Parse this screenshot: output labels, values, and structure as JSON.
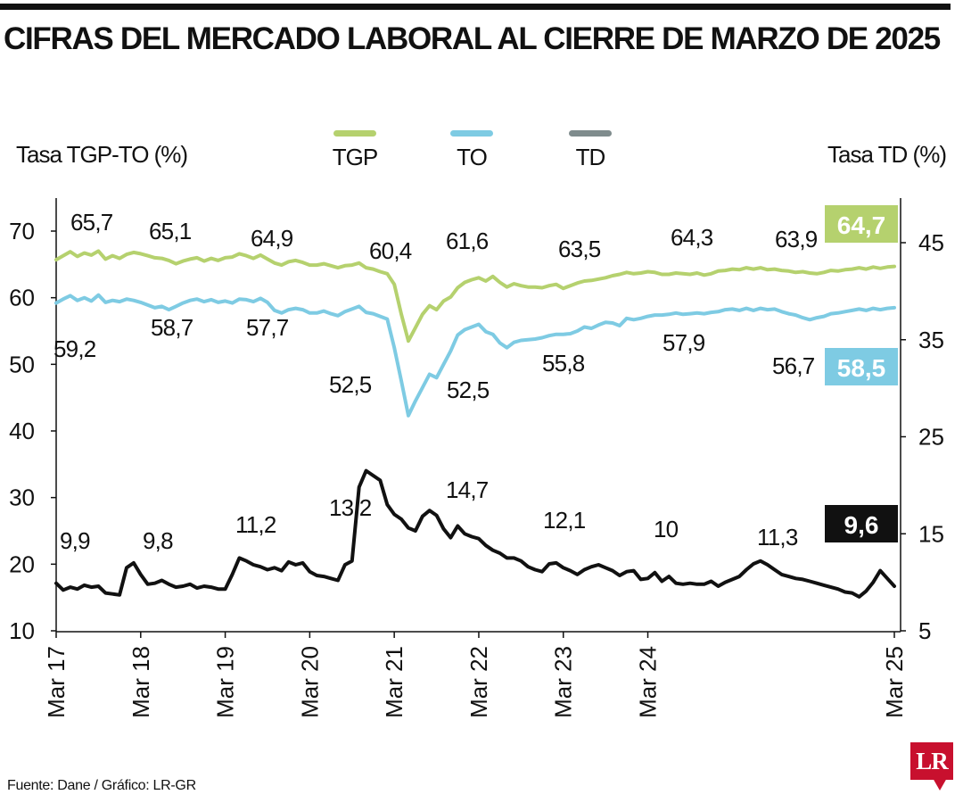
{
  "title": "CIFRAS DEL MERCADO LABORAL AL CIERRE DE MARZO DE 2025",
  "source": "Fuente: Dane / Gráfico: LR-GR",
  "logo": "LR",
  "chart_data": {
    "type": "line",
    "left_axis": {
      "label": "Tasa TGP-TO (%)",
      "ticks": [
        10,
        20,
        30,
        40,
        50,
        60,
        70
      ],
      "range": [
        10,
        70
      ]
    },
    "right_axis": {
      "label": "Tasa TD (%)",
      "ticks": [
        5,
        15,
        25,
        35,
        45
      ],
      "range": [
        5,
        49
      ]
    },
    "x_labels": [
      "Mar 17",
      "Mar 18",
      "Mar 19",
      "Mar 20",
      "Mar 21",
      "Mar 22",
      "Mar 23",
      "Mar 24",
      "Mar 25"
    ],
    "legend": [
      {
        "key": "TGP",
        "label": "TGP",
        "color": "#b5d16e"
      },
      {
        "key": "TO",
        "label": "TO",
        "color": "#7ecbe3"
      },
      {
        "key": "TD",
        "label": "TD",
        "color": "#7f8c8d"
      }
    ],
    "series": [
      {
        "name": "TGP",
        "color": "#b5d16e",
        "axis": "left",
        "values": [
          65.7,
          66.3,
          66.9,
          66.2,
          66.7,
          66.4,
          67,
          65.8,
          66.3,
          65.9,
          66.5,
          66.8,
          66.6,
          66.3,
          66,
          65.9,
          65.6,
          65.1,
          65.5,
          65.8,
          66,
          65.5,
          65.9,
          65.6,
          66,
          66.1,
          66.6,
          66.3,
          65.9,
          66.4,
          65.8,
          65.2,
          64.9,
          65.4,
          65.6,
          65.3,
          64.9,
          64.9,
          65.1,
          64.8,
          64.5,
          64.8,
          64.9,
          65.2,
          64.5,
          64.3,
          63.9,
          63.6,
          62,
          57.5,
          53.5,
          55.5,
          57.5,
          58.8,
          58.2,
          59.5,
          60.1,
          61.5,
          62.3,
          62.7,
          63,
          62.5,
          63.2,
          62.3,
          61.6,
          62.1,
          61.8,
          61.6,
          61.6,
          61.5,
          61.8,
          62,
          61.4,
          61.8,
          62.2,
          62.5,
          62.6,
          62.8,
          63,
          63.3,
          63.5,
          63.8,
          63.6,
          63.7,
          63.9,
          63.8,
          63.5,
          63.5,
          63.7,
          63.6,
          63.5,
          63.7,
          63.4,
          63.6,
          64,
          64.1,
          64.3,
          64.2,
          64.5,
          64.3,
          64.5,
          64.2,
          64.3,
          64.1,
          64,
          63.8,
          63.9,
          63.7,
          63.6,
          63.8,
          64.1,
          64,
          64.2,
          64.3,
          64.5,
          64.3,
          64.6,
          64.4,
          64.6,
          64.7
        ]
      },
      {
        "name": "TO",
        "color": "#7ecbe3",
        "axis": "left",
        "values": [
          59.2,
          59.8,
          60.3,
          59.6,
          60,
          59.5,
          60.4,
          59.3,
          59.6,
          59.4,
          59.8,
          59.6,
          59.3,
          58.9,
          58.5,
          58.7,
          58.2,
          58.7,
          59.2,
          59.6,
          59.8,
          59.4,
          59.7,
          59.3,
          59.5,
          59.2,
          59.8,
          59.7,
          59.4,
          59.9,
          59.3,
          58.1,
          57.7,
          58.2,
          58.4,
          58.2,
          57.7,
          57.7,
          58,
          57.6,
          57.3,
          57.9,
          58.3,
          58.7,
          57.8,
          57.6,
          57.2,
          56.8,
          52.5,
          47.5,
          42.3,
          44.5,
          46.5,
          48.5,
          48,
          50,
          52,
          54.4,
          55.2,
          55.6,
          56,
          54.9,
          54.5,
          53.2,
          52.5,
          53.3,
          53.6,
          53.7,
          53.8,
          54,
          54.3,
          54.5,
          54.5,
          54.6,
          55,
          55.6,
          55.4,
          55.9,
          56.3,
          56.2,
          55.8,
          56.9,
          56.7,
          56.9,
          57.2,
          57.4,
          57.4,
          57.5,
          57.7,
          57.5,
          57.6,
          57.7,
          57.6,
          57.8,
          57.9,
          58.2,
          58.3,
          58.1,
          58.4,
          58.1,
          58.4,
          58.2,
          58.3,
          57.9,
          57.6,
          57.4,
          57,
          56.7,
          57,
          57.2,
          57.6,
          57.7,
          57.9,
          58.1,
          58.3,
          58.1,
          58.4,
          58.2,
          58.4,
          58.5
        ]
      },
      {
        "name": "TD",
        "color": "#111111",
        "axis": "right",
        "values": [
          9.9,
          9.2,
          9.5,
          9.3,
          9.7,
          9.5,
          9.6,
          8.9,
          8.8,
          8.7,
          11.5,
          12,
          10.8,
          9.8,
          9.9,
          10.2,
          9.8,
          9.5,
          9.6,
          9.8,
          9.4,
          9.6,
          9.5,
          9.3,
          9.3,
          10.8,
          12.5,
          12.2,
          11.8,
          11.6,
          11.3,
          11.5,
          11.2,
          12.1,
          11.8,
          12,
          11.1,
          10.7,
          10.6,
          10.4,
          10.2,
          11.8,
          12.2,
          19.8,
          21.5,
          21,
          20.5,
          18,
          17,
          16.5,
          15.6,
          15.3,
          16.8,
          17.4,
          16.9,
          15.5,
          14.6,
          15.8,
          15,
          14.7,
          14.5,
          13.8,
          13.3,
          13,
          12.5,
          12.5,
          12.2,
          11.6,
          11.3,
          11.1,
          11.9,
          12,
          11.5,
          11.2,
          10.8,
          11.3,
          11.6,
          11.8,
          11.5,
          11.2,
          10.7,
          11.1,
          11.2,
          10.3,
          10.4,
          11,
          10.1,
          10.6,
          9.9,
          9.8,
          9.9,
          9.8,
          9.8,
          10.1,
          9.6,
          10,
          10.3,
          10.6,
          11.3,
          11.9,
          12.2,
          11.8,
          11.3,
          10.8,
          10.6,
          10.4,
          10.3,
          10.1,
          9.9,
          9.7,
          9.5,
          9.3,
          9,
          8.9,
          8.5,
          9.1,
          10,
          11.2,
          10.4,
          9.6
        ]
      }
    ],
    "peak_annotations": [
      {
        "series": "TGP",
        "text": "65,7"
      },
      {
        "series": "TGP",
        "text": "65,1"
      },
      {
        "series": "TGP",
        "text": "64,9"
      },
      {
        "series": "TGP",
        "text": "60,4"
      },
      {
        "series": "TGP",
        "text": "61,6"
      },
      {
        "series": "TGP",
        "text": "63,5"
      },
      {
        "series": "TGP",
        "text": "64,3"
      },
      {
        "series": "TGP",
        "text": "63,9"
      },
      {
        "series": "TO",
        "text": "59,2"
      },
      {
        "series": "TO",
        "text": "58,7"
      },
      {
        "series": "TO",
        "text": "57,7"
      },
      {
        "series": "TO",
        "text": "52,5"
      },
      {
        "series": "TO",
        "text": "52,5"
      },
      {
        "series": "TO",
        "text": "55,8"
      },
      {
        "series": "TO",
        "text": "57,9"
      },
      {
        "series": "TO",
        "text": "56,7"
      },
      {
        "series": "TD",
        "text": "9,9"
      },
      {
        "series": "TD",
        "text": "9,8"
      },
      {
        "series": "TD",
        "text": "11,2"
      },
      {
        "series": "TD",
        "text": "13,2"
      },
      {
        "series": "TD",
        "text": "14,7"
      },
      {
        "series": "TD",
        "text": "12,1"
      },
      {
        "series": "TD",
        "text": "10"
      },
      {
        "series": "TD",
        "text": "11,3"
      }
    ],
    "latest_badges": [
      {
        "series": "TGP",
        "text": "64,7",
        "color": "#b5d16e"
      },
      {
        "series": "TO",
        "text": "58,5",
        "color": "#7ecbe3"
      },
      {
        "series": "TD",
        "text": "9,6",
        "color": "#111111"
      }
    ],
    "grid": false,
    "legend_position": "top-center"
  }
}
